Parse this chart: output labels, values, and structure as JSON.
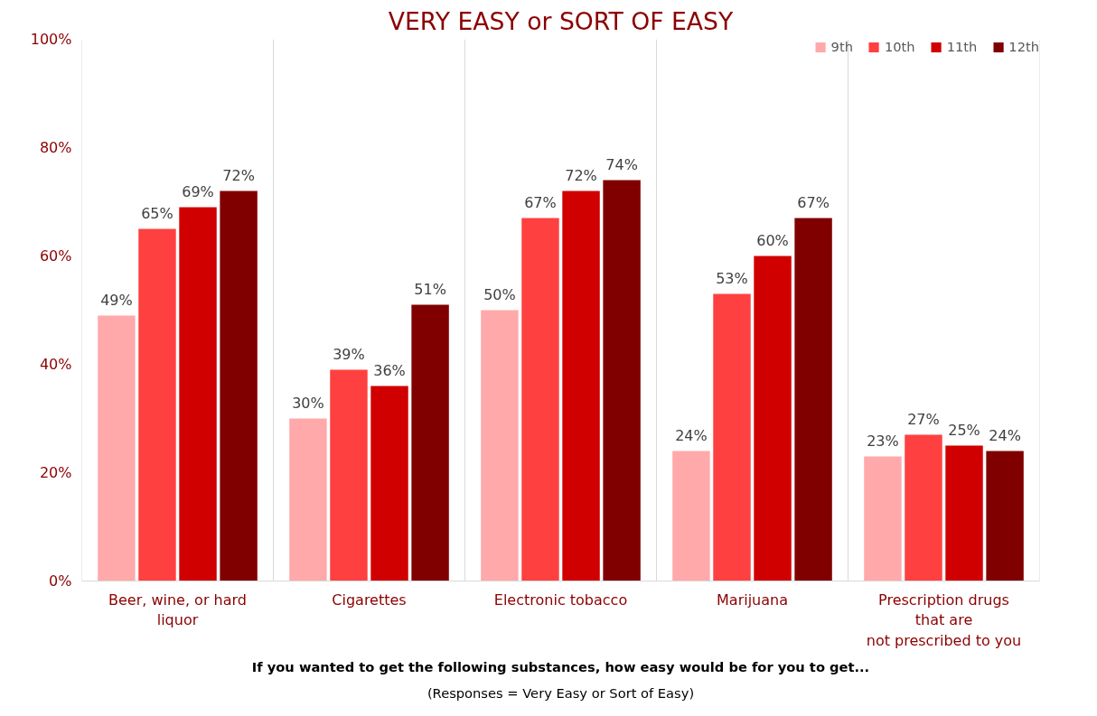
{
  "chart_data": {
    "type": "bar",
    "title": "VERY EASY or SORT OF EASY",
    "categories": [
      "Beer, wine, or hard\nliquor",
      "Cigarettes",
      "Electronic tobacco",
      "Marijuana",
      "Prescription drugs\nthat are\nnot prescribed to you"
    ],
    "series": [
      {
        "name": "9th",
        "color": "#ffa9ab",
        "values": [
          49,
          30,
          50,
          24,
          23
        ],
        "value_labels": [
          "49%",
          "30%",
          "50%",
          "24%",
          "23%"
        ]
      },
      {
        "name": "10th",
        "color": "#ff4040",
        "values": [
          65,
          39,
          67,
          53,
          27
        ],
        "value_labels": [
          "65%",
          "39%",
          "67%",
          "53%",
          "27%"
        ]
      },
      {
        "name": "11th",
        "color": "#d10000",
        "values": [
          69,
          36,
          72,
          60,
          25
        ],
        "value_labels": [
          "69%",
          "36%",
          "72%",
          "60%",
          "25%"
        ]
      },
      {
        "name": "12th",
        "color": "#800000",
        "values": [
          72,
          51,
          74,
          67,
          24
        ],
        "value_labels": [
          "72%",
          "51%",
          "74%",
          "67%",
          "24%"
        ]
      }
    ],
    "ylim": [
      0,
      100
    ],
    "yticks": [
      {
        "value": 0,
        "label": "0%"
      },
      {
        "value": 20,
        "label": "20%"
      },
      {
        "value": 40,
        "label": "40%"
      },
      {
        "value": 60,
        "label": "60%"
      },
      {
        "value": 80,
        "label": "80%"
      },
      {
        "value": 100,
        "label": "100%"
      }
    ],
    "grid": "x",
    "legend": "top right",
    "annotations": [
      "If you wanted to get the following substances, how easy would be for you to get...",
      "(Responses = Very Easy or Sort of Easy)"
    ]
  }
}
